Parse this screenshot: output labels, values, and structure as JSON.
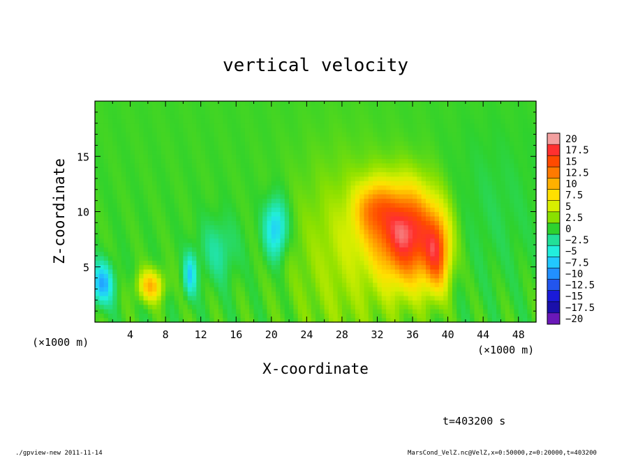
{
  "chart_data": {
    "type": "heatmap",
    "title": "vertical velocity",
    "xlabel": "X-coordinate",
    "ylabel": "Z-coordinate",
    "x_unit": "(×1000 m)",
    "x_unit_right": "(×1000 m)",
    "xlim": [
      0,
      50
    ],
    "ylim": [
      0,
      20
    ],
    "x_ticks": [
      4,
      8,
      12,
      16,
      20,
      24,
      28,
      32,
      36,
      40,
      44,
      48
    ],
    "y_ticks": [
      5,
      10,
      15
    ],
    "colorbar": {
      "levels": [
        20,
        17.5,
        15,
        12.5,
        10,
        7.5,
        5,
        2.5,
        0,
        -2.5,
        -5,
        -7.5,
        -10,
        -12.5,
        -15,
        -17.5,
        -20
      ],
      "level_labels": [
        "20",
        "17.5",
        "15",
        "12.5",
        "10",
        "7.5",
        "5",
        "2.5",
        "0",
        "−2.5",
        "−5",
        "−7.5",
        "−10",
        "−12.5",
        "−15",
        "−17.5",
        "−20"
      ],
      "colors": [
        "#f3a0a0",
        "#ff3030",
        "#ff4a00",
        "#ff7a00",
        "#ffb000",
        "#ffe000",
        "#d8ee00",
        "#8ae000",
        "#2ed22e",
        "#22e098",
        "#22eedd",
        "#22c8ff",
        "#2290ff",
        "#2255ee",
        "#1a1ad8",
        "#1a10aa",
        "#6a18b8"
      ]
    },
    "features": [
      {
        "x": 35.5,
        "z": 7.5,
        "value": 13,
        "sx": 2.4,
        "sz": 3.2
      },
      {
        "x": 34.0,
        "z": 9.0,
        "value": 6,
        "sx": 3.2,
        "sz": 2.6
      },
      {
        "x": 38.8,
        "z": 6.2,
        "value": 11,
        "sx": 1.0,
        "sz": 2.4
      },
      {
        "x": 31.5,
        "z": 10.5,
        "value": 6,
        "sx": 1.4,
        "sz": 1.6
      },
      {
        "x": 6.3,
        "z": 3.3,
        "value": 9,
        "sx": 1.0,
        "sz": 1.0
      },
      {
        "x": 0.8,
        "z": 3.5,
        "value": -9,
        "sx": 0.9,
        "sz": 1.3
      },
      {
        "x": 20.5,
        "z": 8.5,
        "value": -8,
        "sx": 0.9,
        "sz": 1.8
      },
      {
        "x": 10.8,
        "z": 4.3,
        "value": -7,
        "sx": 0.5,
        "sz": 1.3
      },
      {
        "x": 14.0,
        "z": 6.5,
        "value": -3,
        "sx": 1.5,
        "sz": 2.0
      },
      {
        "x": 28.0,
        "z": 6.0,
        "value": 3,
        "sx": 4.0,
        "sz": 6.0
      },
      {
        "x": 45.0,
        "z": 10.0,
        "value": -1,
        "sx": 4.0,
        "sz": 5.0
      }
    ],
    "annotation_time": "t=403200 s",
    "footer_left": "./gpview-new  2011-11-14",
    "footer_right": "MarsCond_VelZ.nc@VelZ,x=0:50000,z=0:20000,t=403200"
  }
}
